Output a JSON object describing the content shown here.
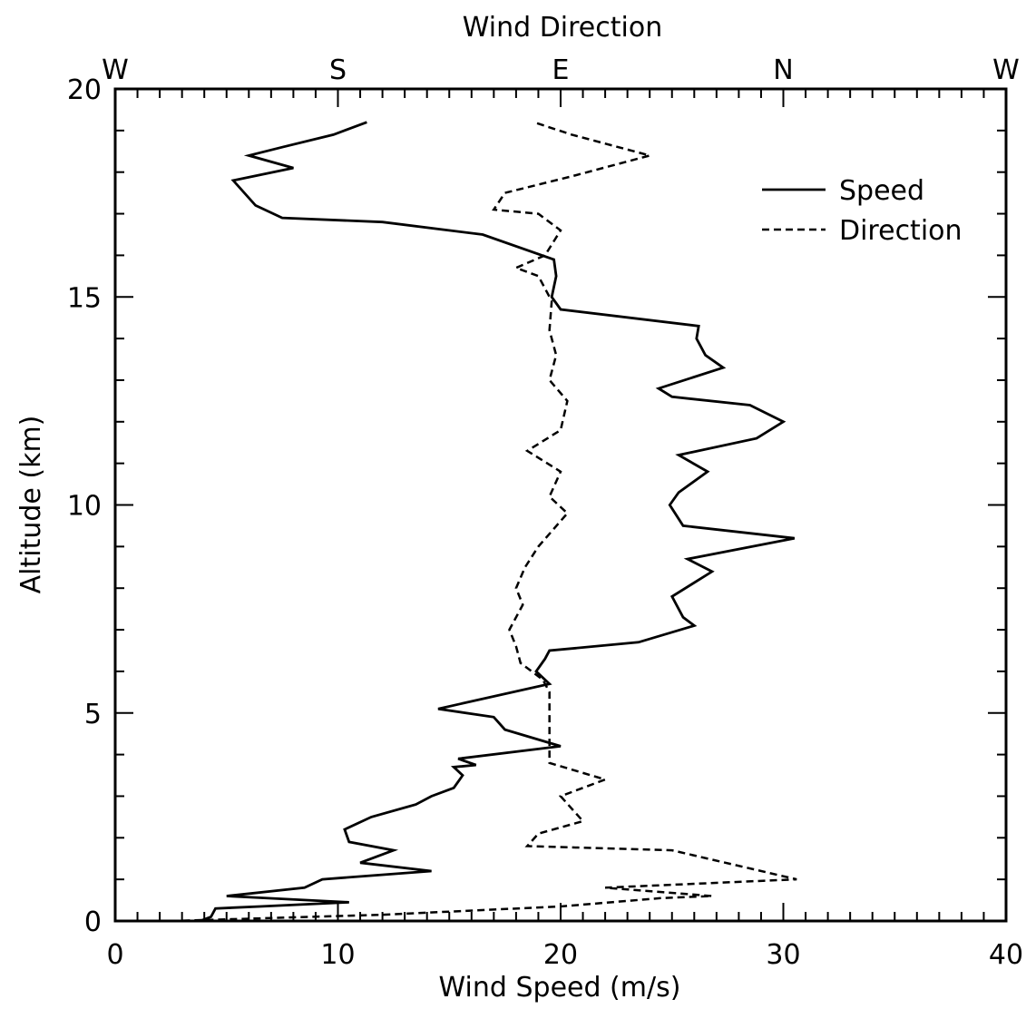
{
  "chart_data": {
    "type": "line",
    "title": "",
    "xlabel": "Wind Speed (m/s)",
    "ylabel": "Altitude (km)",
    "top_xlabel": "Wind Direction",
    "xlim": [
      0,
      40
    ],
    "ylim": [
      0,
      20
    ],
    "x_ticks": [
      0,
      10,
      20,
      30,
      40
    ],
    "y_ticks": [
      0,
      5,
      10,
      15,
      20
    ],
    "x_tick_labels": [
      "0",
      "10",
      "20",
      "30",
      "40"
    ],
    "y_tick_labels": [
      "0",
      "5",
      "10",
      "15",
      "20"
    ],
    "top_axis_labels": [
      {
        "label": "W",
        "x": 0
      },
      {
        "label": "S",
        "x": 10
      },
      {
        "label": "E",
        "x": 20
      },
      {
        "label": "N",
        "x": 30
      },
      {
        "label": "W",
        "x": 40
      }
    ],
    "grid": false,
    "legend_position": "top-right",
    "series": [
      {
        "name": "Speed",
        "line_style": "solid",
        "color": "#000000",
        "points": [
          [
            3.8,
            0.0
          ],
          [
            4.3,
            0.1
          ],
          [
            4.5,
            0.3
          ],
          [
            6.5,
            0.35
          ],
          [
            10.5,
            0.45
          ],
          [
            5.0,
            0.6
          ],
          [
            8.5,
            0.8
          ],
          [
            9.3,
            1.0
          ],
          [
            14.2,
            1.2
          ],
          [
            11.0,
            1.4
          ],
          [
            12.5,
            1.7
          ],
          [
            10.5,
            1.9
          ],
          [
            10.3,
            2.2
          ],
          [
            11.5,
            2.5
          ],
          [
            13.5,
            2.8
          ],
          [
            14.2,
            3.0
          ],
          [
            15.2,
            3.2
          ],
          [
            15.6,
            3.5
          ],
          [
            15.2,
            3.7
          ],
          [
            16.2,
            3.75
          ],
          [
            15.4,
            3.9
          ],
          [
            20.0,
            4.2
          ],
          [
            17.5,
            4.6
          ],
          [
            17.0,
            4.9
          ],
          [
            14.5,
            5.1
          ],
          [
            19.5,
            5.7
          ],
          [
            18.9,
            6.0
          ],
          [
            19.3,
            6.3
          ],
          [
            19.5,
            6.5
          ],
          [
            23.5,
            6.7
          ],
          [
            26.0,
            7.1
          ],
          [
            25.5,
            7.3
          ],
          [
            25.0,
            7.8
          ],
          [
            26.8,
            8.4
          ],
          [
            25.7,
            8.7
          ],
          [
            30.5,
            9.2
          ],
          [
            25.5,
            9.5
          ],
          [
            24.9,
            10.0
          ],
          [
            25.3,
            10.3
          ],
          [
            26.6,
            10.8
          ],
          [
            25.3,
            11.2
          ],
          [
            28.8,
            11.6
          ],
          [
            30.0,
            12.0
          ],
          [
            28.5,
            12.4
          ],
          [
            25.0,
            12.6
          ],
          [
            24.4,
            12.8
          ],
          [
            27.3,
            13.3
          ],
          [
            26.5,
            13.6
          ],
          [
            26.1,
            14.0
          ],
          [
            26.2,
            14.3
          ],
          [
            20.0,
            14.7
          ],
          [
            19.6,
            15.0
          ],
          [
            19.8,
            15.5
          ],
          [
            19.7,
            15.9
          ],
          [
            16.5,
            16.5
          ],
          [
            12.0,
            16.8
          ],
          [
            7.5,
            16.9
          ],
          [
            6.3,
            17.2
          ],
          [
            5.3,
            17.8
          ],
          [
            8.0,
            18.1
          ],
          [
            6.0,
            18.4
          ],
          [
            7.5,
            18.6
          ],
          [
            9.8,
            18.9
          ],
          [
            11.3,
            19.2
          ]
        ]
      },
      {
        "name": "Direction",
        "line_style": "dashed",
        "color": "#000000",
        "points": [
          [
            2.5,
            0.0
          ],
          [
            12.0,
            0.15
          ],
          [
            20.0,
            0.35
          ],
          [
            24.5,
            0.55
          ],
          [
            26.8,
            0.6
          ],
          [
            22.0,
            0.8
          ],
          [
            30.6,
            1.0
          ],
          [
            25.0,
            1.7
          ],
          [
            18.5,
            1.8
          ],
          [
            19.0,
            2.1
          ],
          [
            21.0,
            2.4
          ],
          [
            20.0,
            3.0
          ],
          [
            22.0,
            3.4
          ],
          [
            19.5,
            3.8
          ],
          [
            19.5,
            4.3
          ],
          [
            19.5,
            5.0
          ],
          [
            19.5,
            5.5
          ],
          [
            19.2,
            5.8
          ],
          [
            18.2,
            6.2
          ],
          [
            18.0,
            6.6
          ],
          [
            17.7,
            7.0
          ],
          [
            18.3,
            7.6
          ],
          [
            18.0,
            8.0
          ],
          [
            18.4,
            8.5
          ],
          [
            19.0,
            9.0
          ],
          [
            20.3,
            9.8
          ],
          [
            19.5,
            10.2
          ],
          [
            20.0,
            10.8
          ],
          [
            18.5,
            11.3
          ],
          [
            20.0,
            11.8
          ],
          [
            20.3,
            12.5
          ],
          [
            19.5,
            13.0
          ],
          [
            19.8,
            13.6
          ],
          [
            19.5,
            14.2
          ],
          [
            19.6,
            14.9
          ],
          [
            19.0,
            15.5
          ],
          [
            18.0,
            15.7
          ],
          [
            19.3,
            16.0
          ],
          [
            20.0,
            16.6
          ],
          [
            19.0,
            17.0
          ],
          [
            17.0,
            17.1
          ],
          [
            17.5,
            17.5
          ],
          [
            20.5,
            17.9
          ],
          [
            24.0,
            18.4
          ],
          [
            20.5,
            18.9
          ],
          [
            18.8,
            19.2
          ]
        ]
      }
    ],
    "legend": [
      {
        "label": "Speed",
        "line_style": "solid"
      },
      {
        "label": "Direction",
        "line_style": "dashed"
      }
    ]
  }
}
